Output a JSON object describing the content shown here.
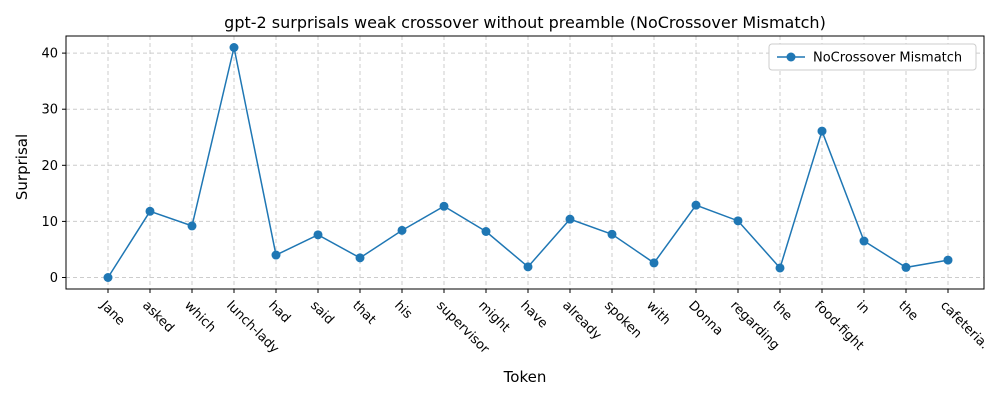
{
  "chart_data": {
    "type": "line",
    "title": "gpt-2 surprisals weak crossover without preamble (NoCrossover Mismatch)",
    "xlabel": "Token",
    "ylabel": "Surprisal",
    "categories": [
      "Jane",
      "asked",
      "which",
      "lunch-lady",
      "had",
      "said",
      "that",
      "his",
      "supervisor",
      "might",
      "have",
      "already",
      "spoken",
      "with",
      "Donna",
      "regarding",
      "the",
      "food-fight",
      "in",
      "the",
      "cafeteria."
    ],
    "series": [
      {
        "name": "NoCrossover Mismatch",
        "color": "#1f77b4",
        "values": [
          0.0,
          11.8,
          9.2,
          41.0,
          4.0,
          7.6,
          3.5,
          8.4,
          12.7,
          8.2,
          1.9,
          10.4,
          7.7,
          2.6,
          12.9,
          10.1,
          1.7,
          26.1,
          6.5,
          1.8,
          3.1
        ]
      }
    ],
    "ylim": [
      -2.05,
      43.05
    ],
    "yticks": [
      0,
      10,
      20,
      30,
      40
    ],
    "grid": true,
    "legend": "top-right"
  }
}
